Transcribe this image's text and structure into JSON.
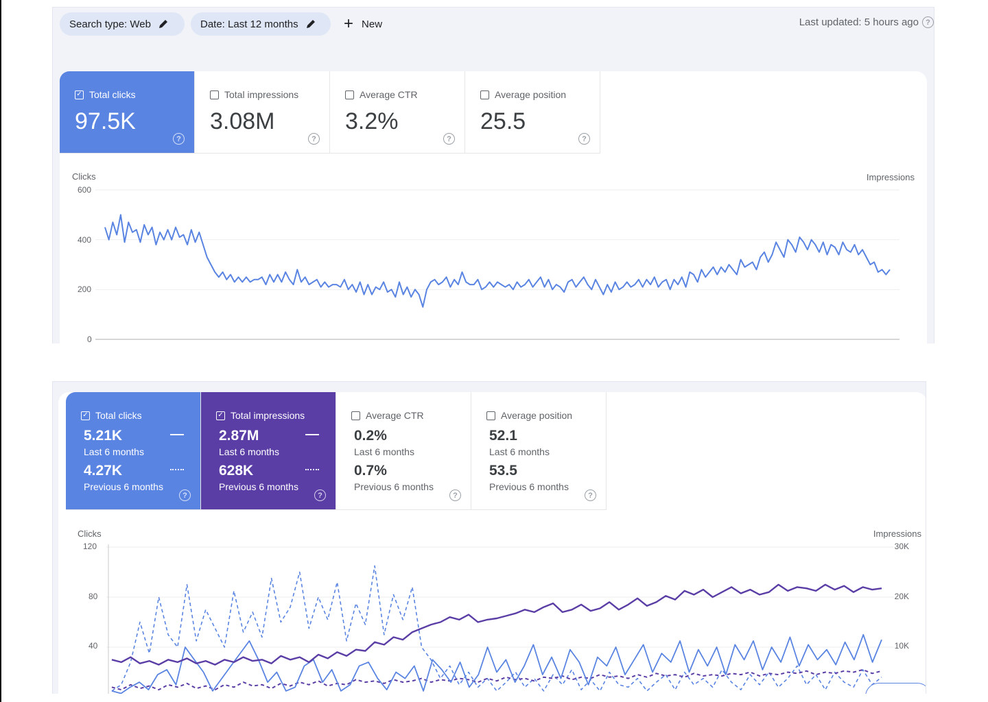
{
  "toolbar": {
    "search_type": "Search type: Web",
    "date": "Date: Last 12 months",
    "new_label": "New",
    "last_updated": "Last updated: 5 hours ago"
  },
  "overview": {
    "metrics": [
      {
        "label": "Total clicks",
        "value": "97.5K",
        "checked": true
      },
      {
        "label": "Total impressions",
        "value": "3.08M",
        "checked": false
      },
      {
        "label": "Average CTR",
        "value": "3.2%",
        "checked": false
      },
      {
        "label": "Average position",
        "value": "25.5",
        "checked": false
      }
    ],
    "chart_title_left": "Clicks",
    "chart_title_right": "Impressions",
    "y_ticks": [
      "600",
      "400",
      "200",
      "0"
    ]
  },
  "compare": {
    "metrics": [
      {
        "label": "Total clicks",
        "current": "5.21K",
        "current_label": "Last 6 months",
        "previous": "4.27K",
        "previous_label": "Previous 6 months",
        "checked": true
      },
      {
        "label": "Total impressions",
        "current": "2.87M",
        "current_label": "Last 6 months",
        "previous": "628K",
        "previous_label": "Previous 6 months",
        "checked": true
      },
      {
        "label": "Average CTR",
        "current": "0.2%",
        "current_label": "Last 6 months",
        "previous": "0.7%",
        "previous_label": "Previous 6 months",
        "checked": false
      },
      {
        "label": "Average position",
        "current": "52.1",
        "current_label": "Last 6 months",
        "previous": "53.5",
        "previous_label": "Previous 6 months",
        "checked": false
      }
    ],
    "chart_title_left": "Clicks",
    "chart_title_right": "Impressions",
    "y_ticks_left": [
      "120",
      "80",
      "40"
    ],
    "y_ticks_right": [
      "30K",
      "20K",
      "10K"
    ]
  },
  "colors": {
    "clicks": "#5a84e2",
    "impressions": "#5a3ea6",
    "chip_bg": "#dfe6f5",
    "panel_bg": "#f1f3f8"
  },
  "chart_data": [
    {
      "type": "line",
      "ylabel": "Clicks",
      "ylim": [
        0,
        600
      ],
      "series": [
        {
          "values": [
            450,
            400,
            470,
            420,
            500,
            390,
            470,
            430,
            440,
            390,
            460,
            420,
            450,
            380,
            430,
            400,
            440,
            400,
            450,
            410,
            420,
            380,
            440,
            390,
            430,
            380,
            330,
            300,
            270,
            250,
            270,
            240,
            260,
            230,
            250,
            230,
            250,
            230,
            240,
            240,
            250,
            220,
            260,
            230,
            260,
            230,
            270,
            240,
            220,
            280,
            230,
            250,
            220,
            230,
            240,
            210,
            230,
            210,
            220,
            220,
            210,
            240,
            200,
            220,
            190,
            230,
            180,
            220,
            180,
            210,
            200,
            230,
            190,
            200,
            170,
            230,
            180,
            210,
            170,
            200,
            180,
            130,
            200,
            230,
            240,
            220,
            230,
            250,
            210,
            240,
            220,
            270,
            230,
            220,
            220,
            240,
            200,
            210,
            230,
            210,
            230,
            220,
            210,
            220,
            200,
            230,
            210,
            220,
            240,
            210,
            230,
            250,
            210,
            240,
            200,
            220,
            210,
            190,
            230,
            240,
            210,
            230,
            250,
            220,
            200,
            240,
            210,
            180,
            220,
            190,
            230,
            200,
            210,
            230,
            210,
            220,
            240,
            210,
            240,
            220,
            250,
            210,
            230,
            240,
            200,
            240,
            220,
            250,
            210,
            270,
            260,
            230,
            280,
            250,
            270,
            290,
            260,
            290,
            270,
            300,
            280,
            260,
            320,
            290,
            300,
            310,
            280,
            330,
            350,
            310,
            340,
            390,
            360,
            330,
            400,
            380,
            350,
            410,
            390,
            360,
            400,
            380,
            350,
            390,
            340,
            380,
            370,
            340,
            390,
            360,
            350,
            380,
            340,
            360,
            330,
            300,
            310,
            270,
            280,
            260,
            280
          ]
        }
      ]
    },
    {
      "type": "line",
      "ylabel": "Clicks",
      "ylim": [
        0,
        120
      ],
      "series": [
        {
          "values": [
            30,
            28,
            32,
            27,
            29,
            26,
            30,
            28,
            31,
            27,
            29,
            26,
            30,
            28,
            32,
            29,
            30,
            27,
            33,
            30,
            32,
            28,
            34,
            31,
            36,
            33,
            38,
            37,
            44,
            42,
            48,
            46,
            52,
            55,
            58,
            60,
            64,
            62,
            66,
            60,
            62,
            63,
            65,
            67,
            70,
            68,
            72,
            75,
            68,
            70,
            74,
            69,
            71,
            76,
            70,
            74,
            79,
            73,
            76,
            81,
            78,
            85,
            82,
            86,
            80,
            84,
            88,
            83,
            86,
            82,
            84,
            90,
            85,
            88,
            87,
            85,
            90,
            86,
            89,
            84,
            88,
            86,
            87
          ]
        },
        {
          "values": [
            5,
            3,
            8,
            12,
            6,
            18,
            22,
            10,
            40,
            30,
            20,
            5,
            15,
            25,
            35,
            45,
            30,
            12,
            20,
            5,
            8,
            25,
            30,
            12,
            22,
            5,
            10,
            25,
            28,
            15,
            6,
            20,
            15,
            25,
            5,
            30,
            22,
            12,
            28,
            8,
            18,
            40,
            20,
            30,
            12,
            25,
            42,
            18,
            32,
            15,
            38,
            28,
            10,
            32,
            25,
            40,
            18,
            30,
            42,
            20,
            35,
            28,
            45,
            20,
            38,
            25,
            40,
            18,
            42,
            30,
            45,
            22,
            40,
            28,
            48,
            25,
            42,
            30,
            38,
            26,
            44,
            30,
            50,
            28,
            46
          ]
        },
        {
          "values": [
            8,
            6,
            10,
            7,
            9,
            6,
            10,
            8,
            11,
            7,
            9,
            6,
            10,
            8,
            12,
            9,
            10,
            7,
            11,
            9,
            12,
            10,
            13,
            9,
            11,
            10,
            14,
            12,
            13,
            11,
            14,
            12,
            13,
            15,
            12,
            14,
            13,
            15,
            14,
            12,
            15,
            13,
            16,
            14,
            15,
            13,
            16,
            15,
            17,
            14,
            16,
            15,
            18,
            16,
            17,
            15,
            18,
            16,
            19,
            17,
            18,
            16,
            19,
            17,
            18,
            17,
            19,
            18,
            20,
            17,
            19,
            18,
            20,
            19,
            21,
            18,
            20,
            19,
            21,
            20,
            22,
            19,
            21
          ]
        },
        {
          "values": [
            5,
            10,
            28,
            60,
            35,
            80,
            50,
            40,
            90,
            45,
            70,
            55,
            40,
            85,
            52,
            68,
            48,
            95,
            60,
            72,
            100,
            55,
            80,
            62,
            92,
            45,
            75,
            58,
            105,
            50,
            82,
            62,
            88,
            40,
            30,
            15,
            25,
            10,
            20,
            8,
            15,
            5,
            12,
            20,
            8,
            15,
            5,
            18,
            10,
            22,
            6,
            14,
            5,
            20,
            10,
            8,
            15,
            5,
            12,
            18,
            6,
            20,
            10,
            15,
            8,
            22,
            12,
            6,
            18,
            10,
            20,
            8,
            15,
            25,
            10,
            18,
            6,
            20,
            12,
            8,
            22,
            10,
            16
          ]
        }
      ]
    }
  ]
}
